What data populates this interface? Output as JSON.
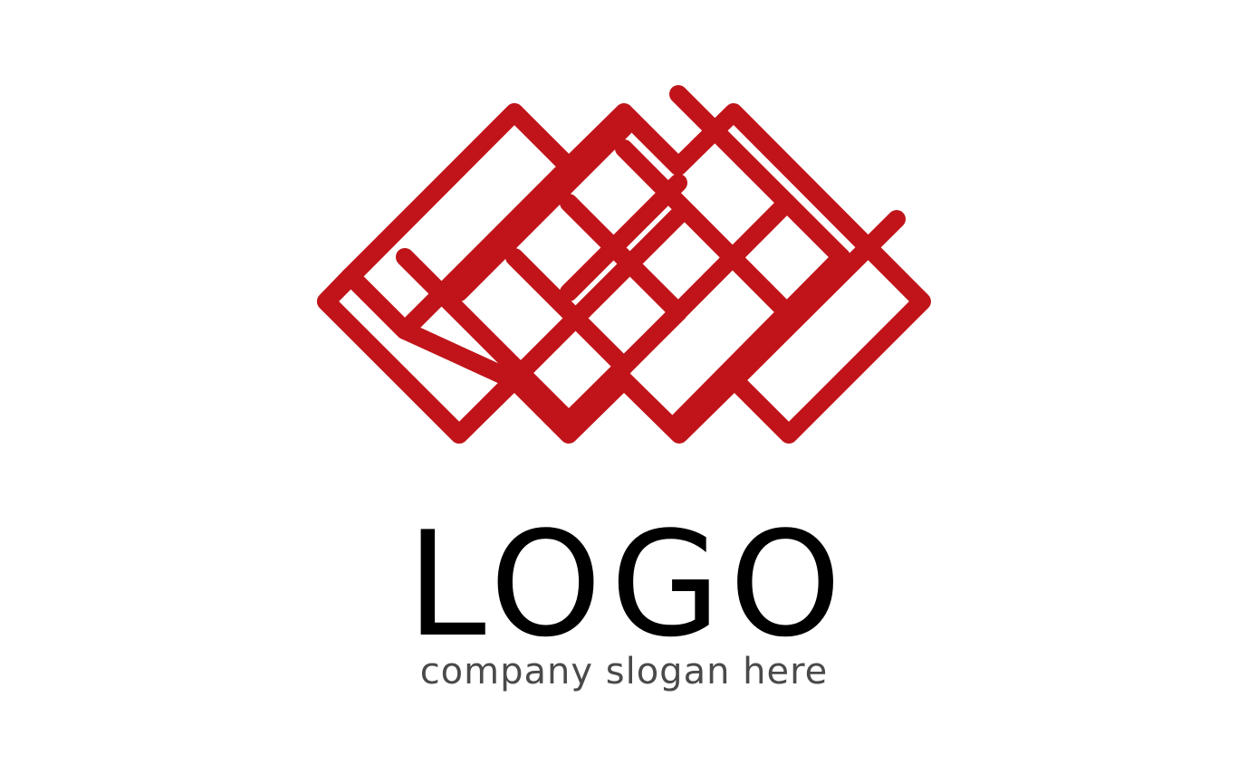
{
  "brand": {
    "logo_text": "LOGO",
    "slogan": "company slogan here",
    "mark_icon": "interlocking-diamond-tiles-icon"
  },
  "colors": {
    "mark": "#C0141A",
    "logo_text": "#000000",
    "slogan": "#4A4A4A",
    "background": "#FFFFFF"
  }
}
